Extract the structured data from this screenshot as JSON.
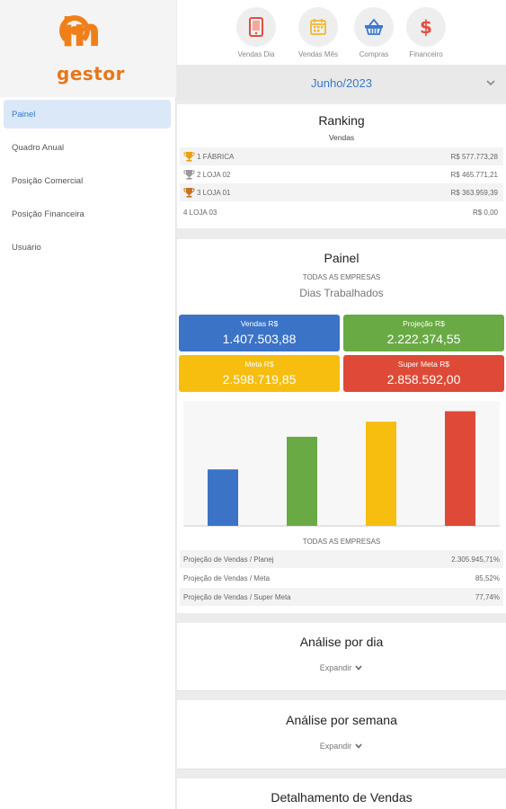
{
  "logo": {
    "in": "in",
    "gestor": "gestor"
  },
  "sidebar": {
    "items": [
      {
        "label": "Painel"
      },
      {
        "label": "Quadro Anual"
      },
      {
        "label": "Posição Comercial"
      },
      {
        "label": "Posição Financeira"
      },
      {
        "label": "Usuário"
      }
    ]
  },
  "tabs": [
    {
      "label": "Vendas Dia",
      "icon": "phone-icon",
      "color": "#e0503c"
    },
    {
      "label": "Vendas Mês",
      "icon": "calendar-icon",
      "color": "#f1b833"
    },
    {
      "label": "Compras",
      "icon": "basket-icon",
      "color": "#3a78c9"
    },
    {
      "label": "Financeiro",
      "icon": "dollar-icon",
      "color": "#e0503c"
    }
  ],
  "month": {
    "label": "Junho/2023"
  },
  "ranking": {
    "title": "Ranking",
    "subtitle": "Vendas",
    "rows": [
      {
        "name": "1 FÁBRICA",
        "value": "R$ 577.773,28",
        "trophy": "gold"
      },
      {
        "name": "2 LOJA 02",
        "value": "R$ 465.771,21",
        "trophy": "silver"
      },
      {
        "name": "3 LOJA 01",
        "value": "R$ 363.959,39",
        "trophy": "bronze"
      },
      {
        "name": "4 LOJA 03",
        "value": "R$ 0,00",
        "trophy": ""
      }
    ]
  },
  "painel": {
    "title": "Painel",
    "scope": "TODAS AS EMPRESAS",
    "subtitle": "Dias Trabalhados",
    "kpis": [
      {
        "label": "Vendas R$",
        "value": "1.407.503,88",
        "color": "#3b73c6"
      },
      {
        "label": "Projeção R$",
        "value": "2.222.374,55",
        "color": "#6aaa45"
      },
      {
        "label": "Meta R$",
        "value": "2.598.719,85",
        "color": "#f7be10"
      },
      {
        "label": "Super Meta R$",
        "value": "2.858.592,00",
        "color": "#de4a37"
      }
    ],
    "stats_scope": "TODAS AS EMPRESAS",
    "stats": [
      {
        "label": "Projeção de Vendas / Planej",
        "value": "2.305.945,71%"
      },
      {
        "label": "Projeção de Vendas / Meta",
        "value": "85,52%"
      },
      {
        "label": "Projeção de Vendas / Super Meta",
        "value": "77,74%"
      }
    ]
  },
  "chart_data": {
    "type": "bar",
    "categories": [
      "Vendas R$",
      "Projeção R$",
      "Meta R$",
      "Super Meta R$"
    ],
    "values": [
      1407503.88,
      2222374.55,
      2598719.85,
      2858592.0
    ],
    "colors": [
      "#3b73c6",
      "#6aaa45",
      "#f7be10",
      "#de4a37"
    ],
    "ylim": [
      0,
      3050000
    ],
    "grid": false,
    "legend": "none"
  },
  "sections": [
    {
      "title": "Análise por dia",
      "expand": "Expandir"
    },
    {
      "title": "Análise por semana",
      "expand": "Expandir"
    },
    {
      "title": "Detalhamento de Vendas"
    }
  ]
}
